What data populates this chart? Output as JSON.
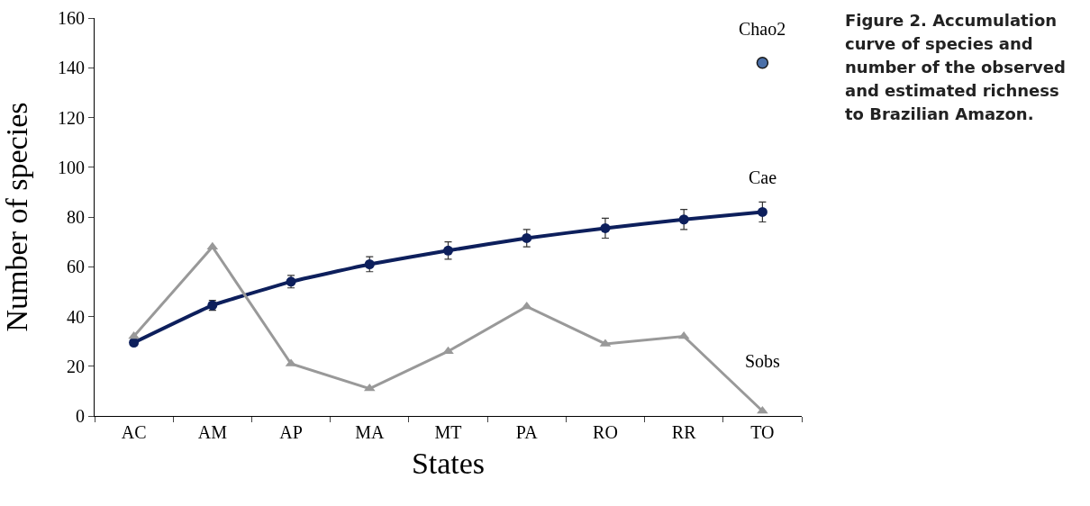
{
  "chart_data": {
    "type": "line",
    "xlabel": "States",
    "ylabel": "Number of species",
    "categories": [
      "AC",
      "AM",
      "AP",
      "MA",
      "MT",
      "PA",
      "RO",
      "RR",
      "TO"
    ],
    "series": [
      {
        "name": "Cae",
        "color": "#0d1f5c",
        "marker": "circle",
        "values": [
          29.5,
          44.5,
          54,
          61,
          66.5,
          71.5,
          75.5,
          79,
          82
        ],
        "errors": [
          1,
          2,
          2.5,
          3,
          3.5,
          3.5,
          4,
          4,
          4
        ]
      },
      {
        "name": "Sobs",
        "color": "#999999",
        "marker": "triangle",
        "values": [
          32,
          68,
          21,
          11,
          26,
          44,
          29,
          32,
          2
        ]
      },
      {
        "name": "Chao2",
        "type": "scatter",
        "color": "#4a6fa8",
        "marker": "circle",
        "values": [
          null,
          null,
          null,
          null,
          null,
          null,
          null,
          null,
          142
        ]
      }
    ],
    "ylim": [
      0,
      160
    ],
    "yticks": [
      0,
      20,
      40,
      60,
      80,
      100,
      120,
      140,
      160
    ],
    "grid": false,
    "legend": false,
    "annotations": [
      "Figure 2. Accumulation curve of species and number of the observed and estimated richness to Brazilian Amazon."
    ]
  }
}
